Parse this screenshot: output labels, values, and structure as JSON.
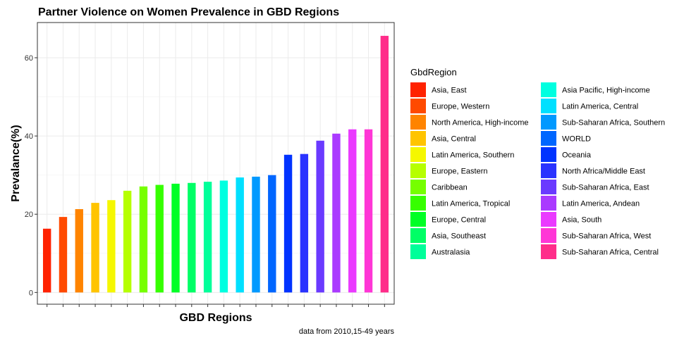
{
  "chart_data": {
    "type": "bar",
    "title": "Partner Violence on  Women Prevalence in GBD Regions",
    "xlabel": "GBD Regions",
    "ylabel": "Prevalance(%)",
    "caption": "data from 2010,15-49 years",
    "ylim": [
      -3,
      69
    ],
    "yticks": [
      0,
      20,
      40,
      60
    ],
    "grid": true,
    "legend_title": "GbdRegion",
    "legend_position": "right",
    "categories": [
      "Asia, East",
      "Europe, Western",
      "North America, High-income",
      "Asia, Central",
      "Latin America, Southern",
      "Europe, Eastern",
      "Caribbean",
      "Latin America, Tropical",
      "Europe, Central",
      "Asia, Southeast",
      "Australasia",
      "Asia Pacific, High-income",
      "Latin America, Central",
      "Sub-Saharan Africa, Southern",
      "WORLD",
      "Oceania",
      "North Africa/Middle East",
      "Sub-Saharan Africa, East",
      "Latin America, Andean",
      "Asia, South",
      "Sub-Saharan Africa, West",
      "Sub-Saharan Africa, Central"
    ],
    "values": [
      16.3,
      19.3,
      21.3,
      22.9,
      23.6,
      26.0,
      27.1,
      27.5,
      27.8,
      28.0,
      28.3,
      28.6,
      29.4,
      29.6,
      30.0,
      35.2,
      35.4,
      38.8,
      40.6,
      41.7,
      41.7,
      65.6
    ],
    "colors": [
      "#FF2200",
      "#FF4A00",
      "#FF8400",
      "#FFC400",
      "#F5F700",
      "#B6FF00",
      "#76FF00",
      "#36FF00",
      "#00FF26",
      "#00FF66",
      "#00FF9A",
      "#00FFE0",
      "#00E0FF",
      "#0099FF",
      "#0066FF",
      "#0033FF",
      "#2A33FF",
      "#6A3AFF",
      "#AA3AFF",
      "#EA3AFF",
      "#FF36D6",
      "#FF2D8A"
    ]
  }
}
